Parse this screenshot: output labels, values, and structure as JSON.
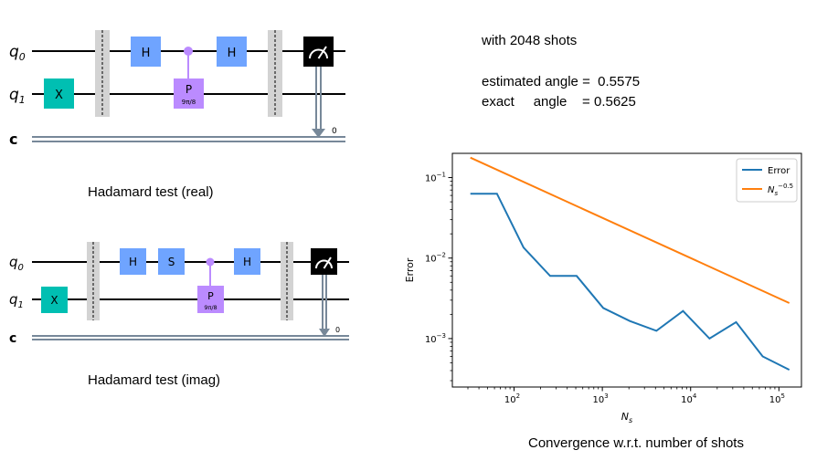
{
  "colors": {
    "wire": "#000000",
    "classical_wire": "#778899",
    "hadamard": "#6fa4ff",
    "s_gate": "#6fa4ff",
    "x_gate": "#00bfb2",
    "phase_gate": "#bb8bff",
    "barrier": "#d3d3d3",
    "measure": "#000000",
    "error_series": "#1f77b4",
    "reference_series": "#ff7f0e"
  },
  "circuit_real": {
    "qubit_labels": {
      "q0_main": "q",
      "q0_sub": "0",
      "q1_main": "q",
      "q1_sub": "1",
      "c": "c"
    },
    "gates": {
      "x": "X",
      "h1": "H",
      "p": "P",
      "p_param": "9π/8",
      "h2": "H"
    },
    "measure_bit": "0",
    "caption": "Hadamard test (real)"
  },
  "circuit_imag": {
    "qubit_labels": {
      "q0_main": "q",
      "q0_sub": "0",
      "q1_main": "q",
      "q1_sub": "1",
      "c": "c"
    },
    "gates": {
      "x": "X",
      "h1": "H",
      "s": "S",
      "p": "P",
      "p_param": "9π/8",
      "h2": "H"
    },
    "measure_bit": "0",
    "caption": "Hadamard test (imag)"
  },
  "results": {
    "shots_line": "with 2048 shots",
    "estimated_line": "estimated angle =  0.5575",
    "exact_line": "exact     angle    = 0.5625"
  },
  "chart_caption": "Convergence w.r.t. number of shots",
  "chart_data": {
    "type": "line",
    "scale": "log-log",
    "xlabel": "N_s",
    "ylabel": "Error",
    "xlim": [
      20,
      180000
    ],
    "ylim": [
      0.00025,
      0.2
    ],
    "x_ticks": [
      {
        "value": 100,
        "base": "10",
        "exp": "2"
      },
      {
        "value": 1000,
        "base": "10",
        "exp": "3"
      },
      {
        "value": 10000,
        "base": "10",
        "exp": "4"
      },
      {
        "value": 100000,
        "base": "10",
        "exp": "5"
      }
    ],
    "y_ticks": [
      {
        "value": 0.001,
        "base": "10",
        "exp": "−3"
      },
      {
        "value": 0.01,
        "base": "10",
        "exp": "−2"
      },
      {
        "value": 0.1,
        "base": "10",
        "exp": "−1"
      }
    ],
    "legend_position": "top-right",
    "series": [
      {
        "name": "Error",
        "x": [
          32,
          64,
          128,
          256,
          512,
          1024,
          2048,
          4096,
          8192,
          16384,
          32768,
          65536,
          131072
        ],
        "values": [
          0.063,
          0.063,
          0.0135,
          0.006,
          0.006,
          0.0024,
          0.00165,
          0.00125,
          0.0022,
          0.001,
          0.0016,
          0.0006,
          0.00041
        ]
      },
      {
        "name": "N_s^-0.5",
        "legend_main": "N",
        "legend_sub": "s",
        "legend_sup": "−0.5",
        "x": [
          32,
          131072
        ],
        "values": [
          0.177,
          0.00276
        ]
      }
    ]
  }
}
